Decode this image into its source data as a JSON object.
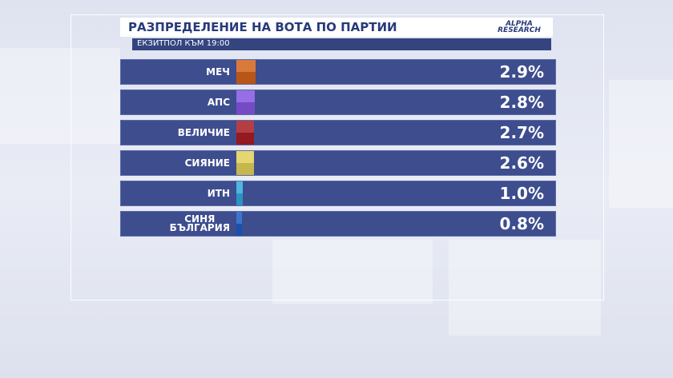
{
  "chart_data": {
    "type": "bar",
    "title": "РАЗПРЕДЕЛЕНИЕ НА ВОТА ПО ПАРТИИ",
    "subtitle": "ЕКЗИТПОЛ КЪМ 19:00",
    "source": "ALPHA RESEARCH",
    "categories": [
      "МЕЧ",
      "АПС",
      "ВЕЛИЧИЕ",
      "СИЯНИЕ",
      "ИТН",
      "СИНЯ\nБЪЛГАРИЯ"
    ],
    "values": [
      2.9,
      2.8,
      2.7,
      2.6,
      1.0,
      0.8
    ],
    "value_labels": [
      "2.9%",
      "2.8%",
      "2.7%",
      "2.6%",
      "1.0%",
      "0.8%"
    ],
    "colors": [
      "#d2621a",
      "#8455e0",
      "#a81c24",
      "#e0cf58",
      "#2fa9dc",
      "#1d5cc4"
    ]
  }
}
